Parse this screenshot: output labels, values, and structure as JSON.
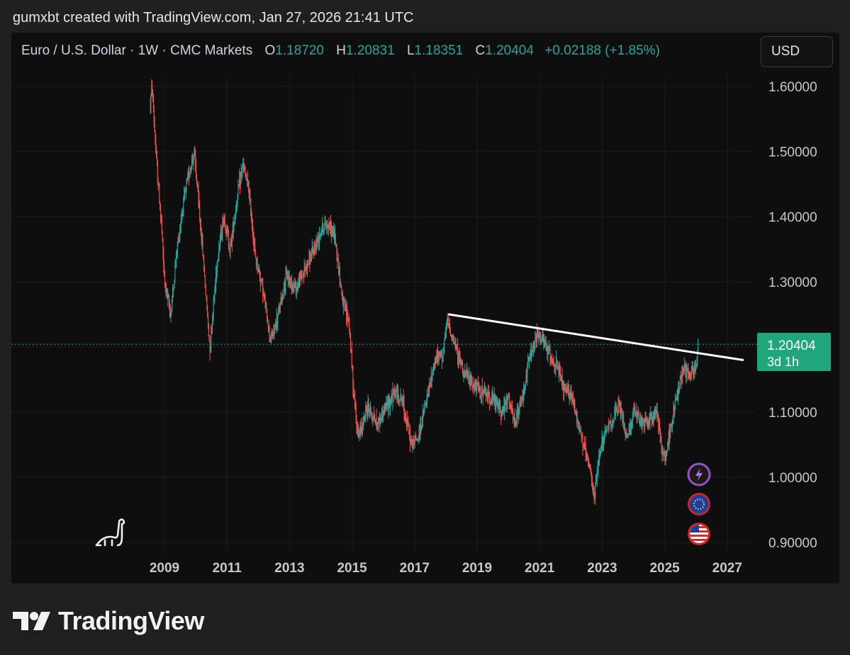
{
  "header": {
    "attribution": "gumxbt created with TradingView.com, Jan 27, 2026 21:41 UTC"
  },
  "legend": {
    "symbol": "Euro / U.S. Dollar · 1W · CMC Markets",
    "open_label": "O",
    "open": "1.18720",
    "high_label": "H",
    "high": "1.20831",
    "low_label": "L",
    "low": "1.18351",
    "close_label": "C",
    "close": "1.20404",
    "change": "+0.02188 (+1.85%)"
  },
  "currency_button": "USD",
  "price_tag": {
    "price": "1.20404",
    "countdown": "3d 1h"
  },
  "brand": "TradingView",
  "colors": {
    "up": "#26a69a",
    "down": "#ef5350",
    "trendline": "#ffffff",
    "background": "#0e0e0e",
    "grid": "#1c1c1c"
  },
  "icons": [
    "dinosaur-icon",
    "lightning-icon",
    "eu-flag-icon",
    "us-flag-icon"
  ],
  "chart_data": {
    "type": "candlestick",
    "title": "Euro / U.S. Dollar · 1W · CMC Markets",
    "timeframe": "1W",
    "x_ticks": [
      "2009",
      "2011",
      "2013",
      "2015",
      "2017",
      "2019",
      "2021",
      "2023",
      "2025",
      "2027"
    ],
    "y_ticks": [
      "1.60000",
      "1.50000",
      "1.40000",
      "1.30000",
      "1.20000",
      "1.10000",
      "1.00000",
      "0.90000"
    ],
    "ylim": [
      0.89,
      1.615
    ],
    "xlim": [
      2006.6,
      2027.9
    ],
    "grid": true,
    "price_path": [
      [
        2008.55,
        1.575
      ],
      [
        2008.6,
        1.6
      ],
      [
        2008.75,
        1.48
      ],
      [
        2008.9,
        1.39
      ],
      [
        2009.0,
        1.3
      ],
      [
        2009.2,
        1.25
      ],
      [
        2009.4,
        1.35
      ],
      [
        2009.6,
        1.42
      ],
      [
        2009.8,
        1.47
      ],
      [
        2009.95,
        1.5
      ],
      [
        2010.2,
        1.36
      ],
      [
        2010.45,
        1.2
      ],
      [
        2010.7,
        1.34
      ],
      [
        2010.9,
        1.4
      ],
      [
        2011.1,
        1.35
      ],
      [
        2011.3,
        1.42
      ],
      [
        2011.5,
        1.48
      ],
      [
        2011.7,
        1.44
      ],
      [
        2011.9,
        1.34
      ],
      [
        2012.1,
        1.3
      ],
      [
        2012.4,
        1.21
      ],
      [
        2012.6,
        1.24
      ],
      [
        2012.9,
        1.31
      ],
      [
        2013.2,
        1.29
      ],
      [
        2013.5,
        1.32
      ],
      [
        2013.8,
        1.35
      ],
      [
        2014.0,
        1.38
      ],
      [
        2014.2,
        1.39
      ],
      [
        2014.45,
        1.37
      ],
      [
        2014.7,
        1.27
      ],
      [
        2014.9,
        1.24
      ],
      [
        2015.05,
        1.13
      ],
      [
        2015.2,
        1.06
      ],
      [
        2015.5,
        1.11
      ],
      [
        2015.8,
        1.08
      ],
      [
        2016.0,
        1.1
      ],
      [
        2016.35,
        1.13
      ],
      [
        2016.6,
        1.12
      ],
      [
        2016.9,
        1.05
      ],
      [
        2017.1,
        1.06
      ],
      [
        2017.4,
        1.12
      ],
      [
        2017.65,
        1.18
      ],
      [
        2017.9,
        1.19
      ],
      [
        2018.05,
        1.24
      ],
      [
        2018.3,
        1.2
      ],
      [
        2018.6,
        1.16
      ],
      [
        2018.9,
        1.14
      ],
      [
        2019.2,
        1.13
      ],
      [
        2019.5,
        1.12
      ],
      [
        2019.8,
        1.1
      ],
      [
        2020.0,
        1.12
      ],
      [
        2020.2,
        1.08
      ],
      [
        2020.45,
        1.12
      ],
      [
        2020.65,
        1.18
      ],
      [
        2020.95,
        1.22
      ],
      [
        2021.1,
        1.21
      ],
      [
        2021.3,
        1.19
      ],
      [
        2021.55,
        1.17
      ],
      [
        2021.8,
        1.13
      ],
      [
        2022.0,
        1.13
      ],
      [
        2022.2,
        1.09
      ],
      [
        2022.4,
        1.05
      ],
      [
        2022.6,
        1.01
      ],
      [
        2022.75,
        0.97
      ],
      [
        2022.95,
        1.05
      ],
      [
        2023.15,
        1.07
      ],
      [
        2023.35,
        1.09
      ],
      [
        2023.55,
        1.11
      ],
      [
        2023.8,
        1.06
      ],
      [
        2024.0,
        1.1
      ],
      [
        2024.3,
        1.08
      ],
      [
        2024.55,
        1.09
      ],
      [
        2024.75,
        1.1
      ],
      [
        2024.95,
        1.03
      ],
      [
        2025.05,
        1.04
      ],
      [
        2025.25,
        1.09
      ],
      [
        2025.45,
        1.14
      ],
      [
        2025.6,
        1.17
      ],
      [
        2025.8,
        1.16
      ],
      [
        2026.0,
        1.17
      ],
      [
        2026.07,
        1.204
      ]
    ],
    "trendline": {
      "start": [
        2018.1,
        1.25
      ],
      "end": [
        2027.5,
        1.18
      ]
    },
    "last_price": 1.20404
  }
}
